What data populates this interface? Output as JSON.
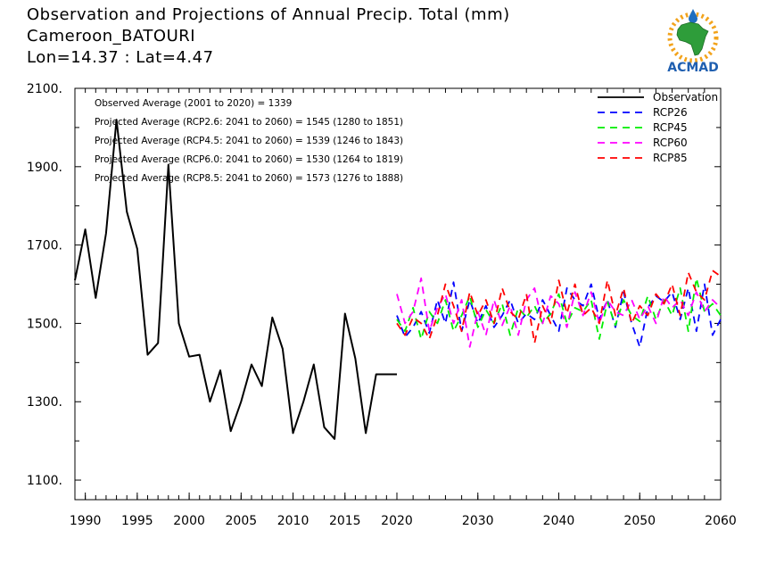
{
  "header": {
    "line1": "Observation and Projections of Annual Precip. Total (mm)",
    "line2": "Cameroon_BATOURI",
    "line3": "Lon=14.37 : Lat=4.47"
  },
  "logo": {
    "text": "ACMAD",
    "icon": "acmad-africa-logo"
  },
  "annotations": [
    "Observed Average (2001 to 2020) = 1339",
    "Projected Average (RCP2.6: 2041 to 2060) = 1545 (1280 to 1851)",
    "Projected Average (RCP4.5: 2041 to 2060) = 1539 (1246 to 1843)",
    "Projected Average (RCP6.0: 2041 to 2060) = 1530 (1264 to 1819)",
    "Projected Average (RCP8.5: 2041 to 2060) = 1573 (1276 to 1888)"
  ],
  "chart_data": {
    "type": "line",
    "title": "Observation and Projections of Annual Precip. Total (mm)",
    "xlabel": "",
    "ylabel": "",
    "xlim": [
      1989,
      2060
    ],
    "ylim": [
      1050,
      2100
    ],
    "yticks": [
      1100,
      1300,
      1500,
      1700,
      1900,
      2100
    ],
    "ytick_labels": [
      "1100.",
      "1300.",
      "1500.",
      "1700.",
      "1900.",
      "2100."
    ],
    "xticks": [
      1990,
      1995,
      2000,
      2005,
      2010,
      2015,
      2020,
      2030,
      2040,
      2050,
      2060
    ],
    "xtick_labels": [
      "1990",
      "1995",
      "2000",
      "2005",
      "2010",
      "2015",
      "2020",
      "2030",
      "2040",
      "2050",
      "2060"
    ],
    "axis_break_year": 2020,
    "legend_position": "top-right",
    "grid": false,
    "series": [
      {
        "name": "Observation",
        "color": "#000000",
        "dash": "solid",
        "x": [
          1989,
          1990,
          1991,
          1992,
          1993,
          1994,
          1995,
          1996,
          1997,
          1998,
          1999,
          2000,
          2001,
          2002,
          2003,
          2004,
          2005,
          2006,
          2007,
          2008,
          2009,
          2010,
          2011,
          2012,
          2013,
          2014,
          2015,
          2016,
          2017,
          2018,
          2019,
          2020
        ],
        "values": [
          1610,
          1740,
          1565,
          1730,
          2020,
          1785,
          1690,
          1420,
          1450,
          1905,
          1500,
          1415,
          1420,
          1300,
          1380,
          1225,
          1300,
          1395,
          1340,
          1515,
          1435,
          1220,
          1300,
          1395,
          1235,
          1205,
          1525,
          1410,
          1220,
          1370,
          1370,
          1370
        ]
      },
      {
        "name": "RCP26",
        "color": "#0000ff",
        "dash": "dashed",
        "x": [
          2020,
          2021,
          2022,
          2023,
          2024,
          2025,
          2026,
          2027,
          2028,
          2029,
          2030,
          2031,
          2032,
          2033,
          2034,
          2035,
          2036,
          2037,
          2038,
          2039,
          2040,
          2041,
          2042,
          2043,
          2044,
          2045,
          2046,
          2047,
          2048,
          2049,
          2050,
          2051,
          2052,
          2053,
          2054,
          2055,
          2056,
          2057,
          2058,
          2059,
          2060
        ],
        "values": [
          1520,
          1465,
          1490,
          1530,
          1475,
          1560,
          1500,
          1605,
          1480,
          1560,
          1500,
          1545,
          1490,
          1520,
          1560,
          1500,
          1525,
          1510,
          1560,
          1520,
          1480,
          1590,
          1560,
          1545,
          1600,
          1510,
          1560,
          1490,
          1580,
          1500,
          1440,
          1540,
          1570,
          1555,
          1580,
          1510,
          1590,
          1480,
          1600,
          1470,
          1510
        ]
      },
      {
        "name": "RCP45",
        "color": "#00ee00",
        "dash": "dashed",
        "x": [
          2020,
          2021,
          2022,
          2023,
          2024,
          2025,
          2026,
          2027,
          2028,
          2029,
          2030,
          2031,
          2032,
          2033,
          2034,
          2035,
          2036,
          2037,
          2038,
          2039,
          2040,
          2041,
          2042,
          2043,
          2044,
          2045,
          2046,
          2047,
          2048,
          2049,
          2050,
          2051,
          2052,
          2053,
          2054,
          2055,
          2056,
          2057,
          2058,
          2059,
          2060
        ],
        "values": [
          1510,
          1480,
          1540,
          1460,
          1530,
          1500,
          1560,
          1480,
          1520,
          1570,
          1490,
          1535,
          1500,
          1550,
          1470,
          1540,
          1515,
          1545,
          1500,
          1525,
          1575,
          1500,
          1540,
          1530,
          1560,
          1460,
          1555,
          1495,
          1560,
          1520,
          1505,
          1570,
          1510,
          1560,
          1520,
          1590,
          1480,
          1615,
          1530,
          1550,
          1520
        ]
      },
      {
        "name": "RCP60",
        "color": "#ff00ff",
        "dash": "dashed",
        "x": [
          2020,
          2021,
          2022,
          2023,
          2024,
          2025,
          2026,
          2027,
          2028,
          2029,
          2030,
          2031,
          2032,
          2033,
          2034,
          2035,
          2036,
          2037,
          2038,
          2039,
          2040,
          2041,
          2042,
          2043,
          2044,
          2045,
          2046,
          2047,
          2048,
          2049,
          2050,
          2051,
          2052,
          2053,
          2054,
          2055,
          2056,
          2057,
          2058,
          2059,
          2060
        ],
        "values": [
          1575,
          1500,
          1530,
          1615,
          1480,
          1540,
          1575,
          1500,
          1560,
          1440,
          1530,
          1470,
          1560,
          1495,
          1545,
          1470,
          1560,
          1590,
          1500,
          1570,
          1550,
          1490,
          1580,
          1520,
          1580,
          1500,
          1560,
          1530,
          1520,
          1560,
          1510,
          1545,
          1500,
          1570,
          1540,
          1560,
          1520,
          1580,
          1530,
          1560,
          1540
        ]
      },
      {
        "name": "RCP85",
        "color": "#ff0000",
        "dash": "dashed",
        "x": [
          2020,
          2021,
          2022,
          2023,
          2024,
          2025,
          2026,
          2027,
          2028,
          2029,
          2030,
          2031,
          2032,
          2033,
          2034,
          2035,
          2036,
          2037,
          2038,
          2039,
          2040,
          2041,
          2042,
          2043,
          2044,
          2045,
          2046,
          2047,
          2048,
          2049,
          2050,
          2051,
          2052,
          2053,
          2054,
          2055,
          2056,
          2057,
          2058,
          2059,
          2060
        ],
        "values": [
          1500,
          1470,
          1515,
          1500,
          1460,
          1520,
          1600,
          1545,
          1480,
          1580,
          1520,
          1560,
          1500,
          1590,
          1530,
          1510,
          1575,
          1450,
          1545,
          1500,
          1610,
          1525,
          1600,
          1520,
          1540,
          1500,
          1610,
          1520,
          1590,
          1500,
          1545,
          1520,
          1575,
          1550,
          1600,
          1520,
          1630,
          1580,
          1560,
          1635,
          1620
        ]
      }
    ]
  }
}
